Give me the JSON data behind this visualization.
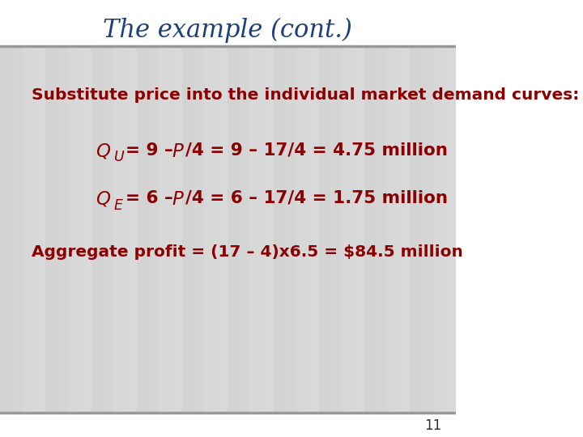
{
  "title": "The example (cont.)",
  "title_color": "#1F3F7A",
  "title_fontsize": 22,
  "bg_color": "#FFFFFF",
  "text_color": "#8B0000",
  "page_number": "11",
  "line1": "Substitute price into the individual market demand curves:",
  "line2_rest": "/4 = 9 – 17/4 = 4.75 million",
  "line3_rest": "/4 = 6 – 17/4 = 1.75 million",
  "line4": "Aggregate profit = (17 – 4)x6.5 = $84.5 million",
  "sep_color": "#999999",
  "img_bg_color": "#DEDEDE",
  "page_num_color": "#333333"
}
